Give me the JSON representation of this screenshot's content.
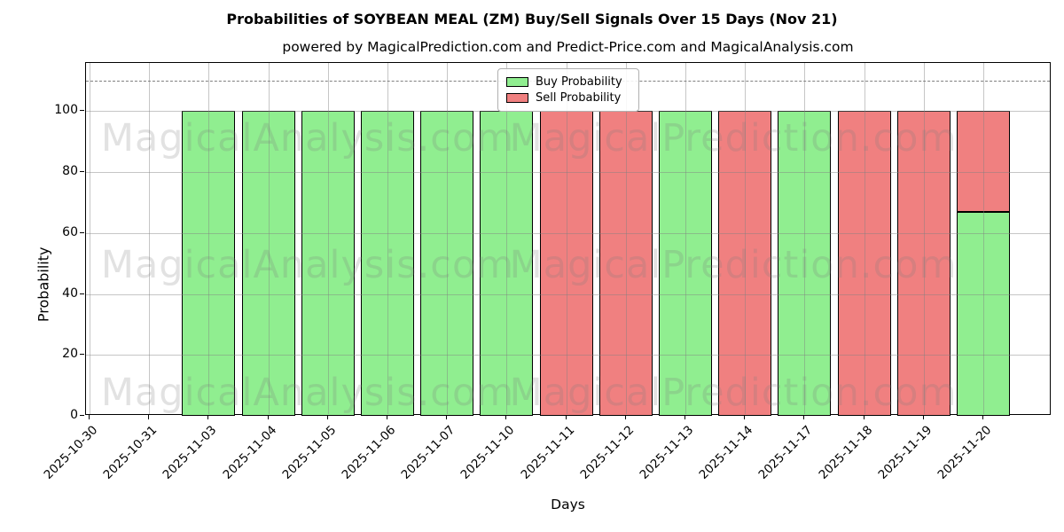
{
  "title": "Probabilities of SOYBEAN MEAL (ZM) Buy/Sell Signals Over 15 Days (Nov 21)",
  "subtitle": "powered by MagicalPrediction.com and Predict-Price.com and MagicalAnalysis.com",
  "chart_data": {
    "type": "bar",
    "stacked": true,
    "title": "Probabilities of SOYBEAN MEAL (ZM) Buy/Sell Signals Over 15 Days (Nov 21)",
    "subtitle": "powered by MagicalPrediction.com and Predict-Price.com and MagicalAnalysis.com",
    "xlabel": "Days",
    "ylabel": "Probability",
    "ylim": [
      0,
      115.8
    ],
    "yticks": [
      0,
      20,
      40,
      60,
      80,
      100
    ],
    "grid": true,
    "threshold_dashed_line_y": 110,
    "categories": [
      "2025-10-30",
      "2025-10-31",
      "2025-11-03",
      "2025-11-04",
      "2025-11-05",
      "2025-11-06",
      "2025-11-07",
      "2025-11-10",
      "2025-11-11",
      "2025-11-12",
      "2025-11-13",
      "2025-11-14",
      "2025-11-17",
      "2025-11-18",
      "2025-11-19",
      "2025-11-20"
    ],
    "series": [
      {
        "name": "Buy Probability",
        "color": "#90ee90",
        "values": [
          0,
          0,
          100,
          100,
          100,
          100,
          100,
          100,
          0,
          0,
          100,
          0,
          100,
          0,
          0,
          67
        ]
      },
      {
        "name": "Sell Probability",
        "color": "#f08080",
        "values": [
          0,
          0,
          0,
          0,
          0,
          0,
          0,
          0,
          100,
          100,
          0,
          100,
          0,
          100,
          100,
          33
        ]
      }
    ],
    "legend": {
      "position": "top-center",
      "entries": [
        {
          "label": "Buy Probability",
          "color": "#90ee90"
        },
        {
          "label": "Sell Probability",
          "color": "#f08080"
        }
      ]
    },
    "bar_edge_color": "#000000",
    "watermarks": [
      {
        "text": "MagicalAnalysis.com",
        "side": "left"
      },
      {
        "text": "MagicalPrediction.com",
        "side": "right"
      }
    ]
  }
}
